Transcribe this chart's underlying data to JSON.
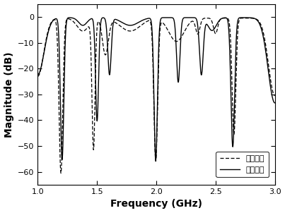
{
  "title": "",
  "xlabel": "Frequency (GHz)",
  "ylabel": "Magnitude (dB)",
  "xlim": [
    1.0,
    3.0
  ],
  "ylim": [
    -65,
    5
  ],
  "yticks": [
    0,
    -10,
    -20,
    -30,
    -40,
    -50,
    -60
  ],
  "xticks": [
    1.0,
    1.5,
    2.0,
    2.5,
    3.0
  ],
  "legend_sim": "仿真结果",
  "legend_meas": "测量结果",
  "bg_color": "#ffffff",
  "line_color": "#000000"
}
